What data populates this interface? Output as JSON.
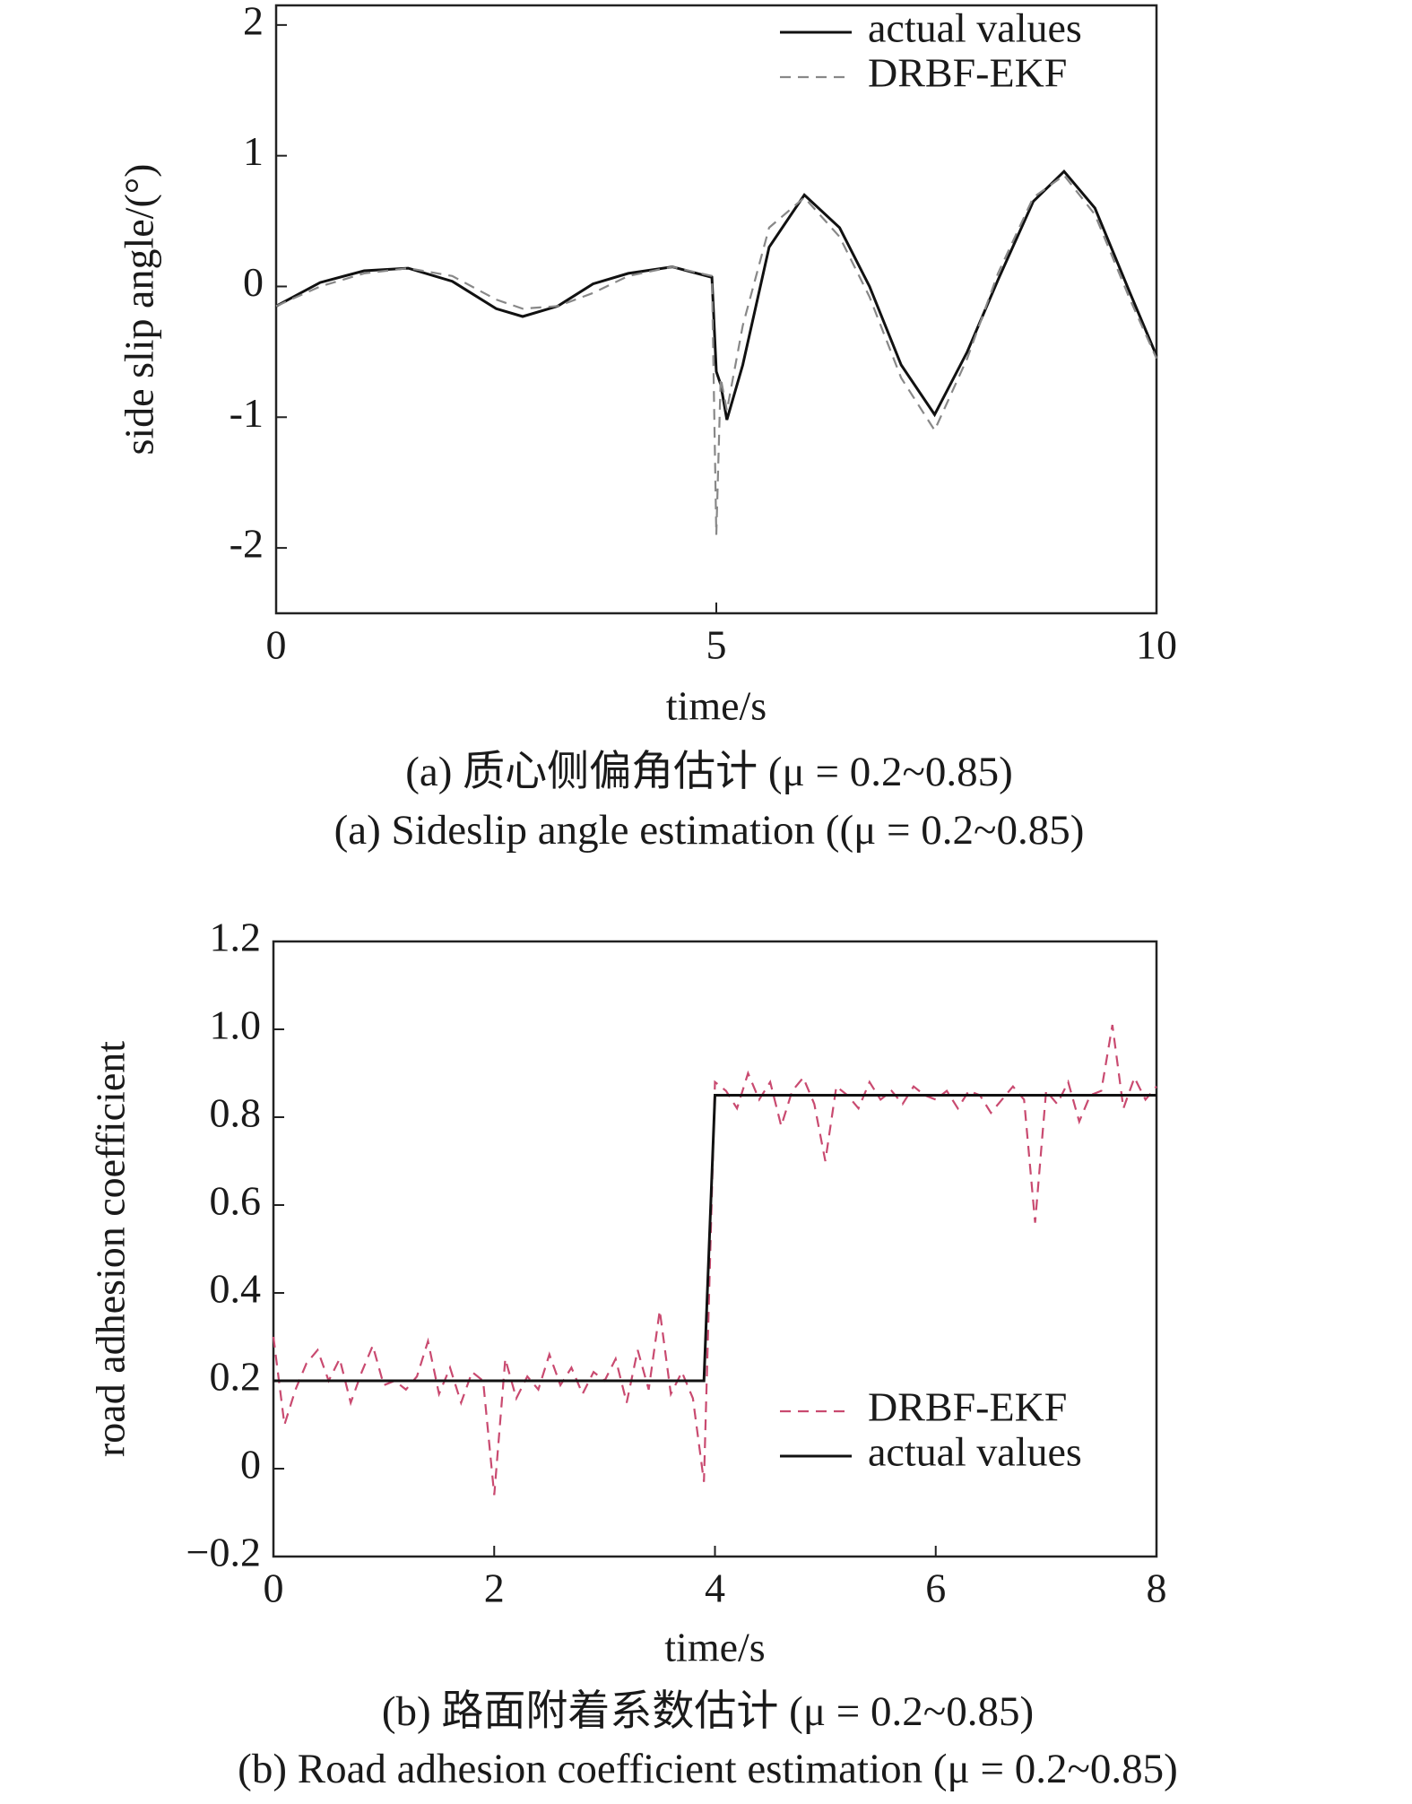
{
  "chart_data": [
    {
      "type": "line",
      "x": [
        0,
        0.5,
        1,
        1.5,
        2,
        2.5,
        2.8,
        3.2,
        3.6,
        4,
        4.5,
        4.95,
        5,
        5.05,
        5.12,
        5.3,
        5.6,
        6,
        6.4,
        6.74,
        7.1,
        7.48,
        7.85,
        8.2,
        8.6,
        8.95,
        9.3,
        9.7,
        10
      ],
      "series": [
        {
          "name": "actual values",
          "color": "#111111",
          "dashed": false,
          "values": [
            -0.15,
            0.03,
            0.12,
            0.14,
            0.04,
            -0.17,
            -0.23,
            -0.15,
            0.02,
            0.1,
            0.15,
            0.07,
            -0.65,
            -0.75,
            -1.02,
            -0.6,
            0.3,
            0.7,
            0.45,
            0,
            -0.6,
            -0.98,
            -0.5,
            0.05,
            0.65,
            0.88,
            0.6,
            -0.05,
            -0.53
          ]
        },
        {
          "name": "DRBF-EKF",
          "color": "#888888",
          "dashed": true,
          "values": [
            -0.15,
            0,
            0.1,
            0.14,
            0.08,
            -0.1,
            -0.17,
            -0.15,
            -0.05,
            0.08,
            0.15,
            0.08,
            -1.9,
            -0.7,
            -0.95,
            -0.3,
            0.45,
            0.68,
            0.38,
            -0.08,
            -0.7,
            -1.1,
            -0.55,
            0.1,
            0.68,
            0.85,
            0.55,
            -0.1,
            -0.55
          ]
        }
      ],
      "xlim": [
        0,
        10
      ],
      "xticks": [
        0,
        5,
        10
      ],
      "ylim": [
        -2.5,
        2.15
      ],
      "yticks": [
        -2,
        -1,
        0,
        1,
        2
      ],
      "xlabel": "time/s",
      "ylabel": "side slip angle/(°)",
      "legend": "upper right",
      "captions": [
        "(a) 质心侧偏角估计 (μ = 0.2~0.85)",
        "(a) Sideslip angle estimation ((μ = 0.2~0.85)"
      ]
    },
    {
      "type": "line",
      "x": [
        0,
        0.1,
        0.2,
        0.3,
        0.4,
        0.5,
        0.6,
        0.7,
        0.8,
        0.9,
        1,
        1.1,
        1.2,
        1.3,
        1.4,
        1.5,
        1.6,
        1.7,
        1.8,
        1.9,
        2,
        2.1,
        2.2,
        2.3,
        2.4,
        2.5,
        2.6,
        2.7,
        2.8,
        2.9,
        3,
        3.1,
        3.2,
        3.3,
        3.4,
        3.5,
        3.6,
        3.7,
        3.8,
        3.9,
        4,
        4.1,
        4.2,
        4.3,
        4.4,
        4.5,
        4.6,
        4.7,
        4.8,
        4.9,
        5,
        5.1,
        5.2,
        5.3,
        5.4,
        5.5,
        5.6,
        5.7,
        5.8,
        5.9,
        6,
        6.1,
        6.2,
        6.3,
        6.4,
        6.5,
        6.6,
        6.7,
        6.8,
        6.9,
        7,
        7.1,
        7.2,
        7.3,
        7.4,
        7.5,
        7.6,
        7.7,
        7.8,
        7.9,
        8
      ],
      "series": [
        {
          "name": "DRBF-EKF",
          "color": "#c94a70",
          "dashed": true,
          "values": [
            0.3,
            0.1,
            0.18,
            0.24,
            0.27,
            0.2,
            0.25,
            0.15,
            0.22,
            0.28,
            0.19,
            0.2,
            0.18,
            0.21,
            0.29,
            0.17,
            0.23,
            0.15,
            0.22,
            0.2,
            -0.06,
            0.25,
            0.16,
            0.21,
            0.18,
            0.26,
            0.19,
            0.23,
            0.17,
            0.22,
            0.2,
            0.25,
            0.15,
            0.27,
            0.18,
            0.36,
            0.17,
            0.22,
            0.16,
            -0.03,
            0.88,
            0.86,
            0.82,
            0.9,
            0.84,
            0.88,
            0.78,
            0.86,
            0.89,
            0.83,
            0.7,
            0.87,
            0.85,
            0.82,
            0.88,
            0.84,
            0.86,
            0.83,
            0.87,
            0.85,
            0.84,
            0.86,
            0.82,
            0.86,
            0.85,
            0.81,
            0.84,
            0.87,
            0.84,
            0.56,
            0.86,
            0.83,
            0.88,
            0.79,
            0.85,
            0.86,
            1.01,
            0.82,
            0.89,
            0.84,
            0.87
          ]
        },
        {
          "name": "actual values",
          "color": "#111111",
          "dashed": false,
          "values": [
            0.2,
            0.2,
            0.2,
            0.2,
            0.2,
            0.2,
            0.2,
            0.2,
            0.2,
            0.2,
            0.2,
            0.2,
            0.2,
            0.2,
            0.2,
            0.2,
            0.2,
            0.2,
            0.2,
            0.2,
            0.2,
            0.2,
            0.2,
            0.2,
            0.2,
            0.2,
            0.2,
            0.2,
            0.2,
            0.2,
            0.2,
            0.2,
            0.2,
            0.2,
            0.2,
            0.2,
            0.2,
            0.2,
            0.2,
            0.2,
            0.85,
            0.85,
            0.85,
            0.85,
            0.85,
            0.85,
            0.85,
            0.85,
            0.85,
            0.85,
            0.85,
            0.85,
            0.85,
            0.85,
            0.85,
            0.85,
            0.85,
            0.85,
            0.85,
            0.85,
            0.85,
            0.85,
            0.85,
            0.85,
            0.85,
            0.85,
            0.85,
            0.85,
            0.85,
            0.85,
            0.85,
            0.85,
            0.85,
            0.85,
            0.85,
            0.85,
            0.85,
            0.85,
            0.85,
            0.85,
            0.85
          ]
        }
      ],
      "xlim": [
        0,
        8
      ],
      "xticks": [
        0,
        2,
        4,
        6,
        8
      ],
      "ylim": [
        -0.2,
        1.2
      ],
      "yticks": [
        {
          "value": -0.2,
          "label": "−0.2"
        },
        0,
        0.2,
        0.4,
        0.6,
        0.8,
        {
          "value": 1.0,
          "label": "1.0"
        },
        1.2
      ],
      "xlabel": "time/s",
      "ylabel": "road adhesion coefficient",
      "legend": "lower right",
      "captions": [
        "(b) 路面附着系数估计 (μ = 0.2~0.85)",
        "(b) Road adhesion coefficient estimation (μ = 0.2~0.85)"
      ]
    }
  ]
}
